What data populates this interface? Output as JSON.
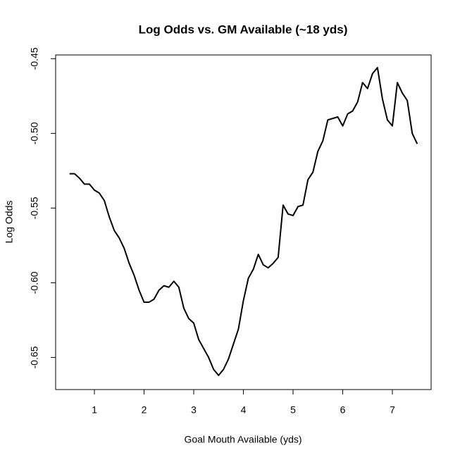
{
  "chart_data": {
    "type": "line",
    "title": "Log Odds vs. GM Available (~18 yds)",
    "x_label": "Goal Mouth Available (yds)",
    "y_label": "Log Odds",
    "x": [
      0.5,
      0.6,
      0.7,
      0.8,
      0.9,
      1.0,
      1.1,
      1.2,
      1.3,
      1.4,
      1.5,
      1.6,
      1.7,
      1.8,
      1.9,
      2.0,
      2.1,
      2.2,
      2.3,
      2.4,
      2.5,
      2.6,
      2.7,
      2.8,
      2.9,
      3.0,
      3.1,
      3.2,
      3.3,
      3.4,
      3.5,
      3.6,
      3.7,
      3.8,
      3.9,
      4.0,
      4.1,
      4.2,
      4.3,
      4.4,
      4.5,
      4.6,
      4.7,
      4.8,
      4.9,
      5.0,
      5.1,
      5.2,
      5.3,
      5.4,
      5.5,
      5.6,
      5.7,
      5.8,
      5.9,
      6.0,
      6.1,
      6.2,
      6.3,
      6.4,
      6.5,
      6.6,
      6.7,
      6.8,
      6.9,
      7.0,
      7.1,
      7.2,
      7.3,
      7.4,
      7.5
    ],
    "series": [
      {
        "name": "Log Odds",
        "color": "#000000",
        "values": [
          -0.527,
          -0.527,
          -0.53,
          -0.534,
          -0.534,
          -0.538,
          -0.54,
          -0.545,
          -0.556,
          -0.565,
          -0.57,
          -0.577,
          -0.587,
          -0.595,
          -0.605,
          -0.613,
          -0.613,
          -0.611,
          -0.605,
          -0.602,
          -0.603,
          -0.599,
          -0.603,
          -0.617,
          -0.624,
          -0.627,
          -0.638,
          -0.644,
          -0.65,
          -0.658,
          -0.662,
          -0.658,
          -0.651,
          -0.641,
          -0.631,
          -0.612,
          -0.597,
          -0.591,
          -0.581,
          -0.588,
          -0.59,
          -0.587,
          -0.583,
          -0.548,
          -0.554,
          -0.555,
          -0.549,
          -0.548,
          -0.531,
          -0.526,
          -0.512,
          -0.505,
          -0.491,
          -0.49,
          -0.489,
          -0.495,
          -0.487,
          -0.485,
          -0.479,
          -0.466,
          -0.47,
          -0.46,
          -0.456,
          -0.477,
          -0.491,
          -0.495,
          -0.466,
          -0.473,
          -0.478,
          -0.5,
          -0.507
        ]
      }
    ],
    "xlim": [
      0.22,
      7.78
    ],
    "ylim": [
      -0.6715,
      -0.4475
    ],
    "xticks": [
      1,
      2,
      3,
      4,
      5,
      6,
      7
    ],
    "yticks": [
      -0.65,
      {
        "value": -0.6,
        "label": "-0.60"
      },
      -0.55,
      {
        "value": -0.5,
        "label": "-0.50"
      },
      -0.45
    ]
  }
}
